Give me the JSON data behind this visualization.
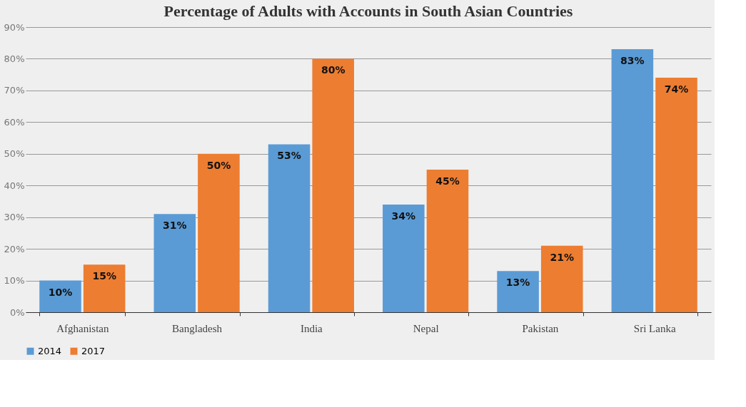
{
  "chart_data": {
    "type": "bar",
    "title": "Percentage of Adults with Accounts in South Asian Countries",
    "categories": [
      "Afghanistan",
      "Bangladesh",
      "India",
      "Nepal",
      "Pakistan",
      "Sri Lanka"
    ],
    "series": [
      {
        "name": "2014",
        "color": "#5b9bd5",
        "values": [
          10,
          31,
          53,
          34,
          13,
          83
        ],
        "value_labels": [
          "10%",
          "31%",
          "53%",
          "34%",
          "13%",
          "83%"
        ]
      },
      {
        "name": "2017",
        "color": "#ed7d31",
        "values": [
          15,
          50,
          80,
          45,
          21,
          74
        ],
        "value_labels": [
          "15%",
          "50%",
          "80%",
          "45%",
          "21%",
          "74%"
        ]
      }
    ],
    "ylim": [
      0,
      90
    ],
    "yticks": [
      {
        "value": 0,
        "label": "0%"
      },
      {
        "value": 10,
        "label": "10%"
      },
      {
        "value": 20,
        "label": "20%"
      },
      {
        "value": 30,
        "label": "30%"
      },
      {
        "value": 40,
        "label": "40%"
      },
      {
        "value": 50,
        "label": "50%"
      },
      {
        "value": 60,
        "label": "60%"
      },
      {
        "value": 70,
        "label": "70%"
      },
      {
        "value": 80,
        "label": "80%"
      },
      {
        "value": 90,
        "label": "90%"
      }
    ],
    "grid": "y",
    "legend": "bottom"
  }
}
